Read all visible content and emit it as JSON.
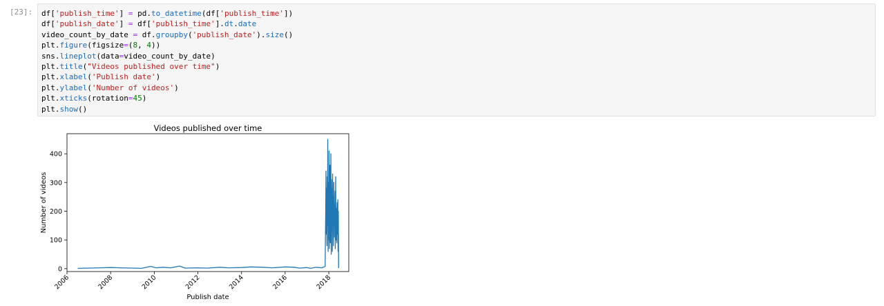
{
  "cell": {
    "prompt": "[23]:"
  },
  "code_lines": [
    [
      [
        "df[",
        ""
      ],
      [
        "'publish_time'",
        "str"
      ],
      [
        "] ",
        ""
      ],
      [
        "=",
        "op"
      ],
      [
        " pd.",
        ""
      ],
      [
        "to_datetime",
        "fn"
      ],
      [
        "(df[",
        ""
      ],
      [
        "'publish_time'",
        "str"
      ],
      [
        "])",
        ""
      ]
    ],
    [
      [
        "df[",
        ""
      ],
      [
        "'publish_date'",
        "str"
      ],
      [
        "] ",
        ""
      ],
      [
        "=",
        "op"
      ],
      [
        " df[",
        ""
      ],
      [
        "'publish_time'",
        "str"
      ],
      [
        "].",
        ""
      ],
      [
        "dt",
        "fn"
      ],
      [
        ".",
        ""
      ],
      [
        "date",
        "fn"
      ]
    ],
    [
      [
        "video_count_by_date ",
        ""
      ],
      [
        "=",
        "op"
      ],
      [
        " df.",
        ""
      ],
      [
        "groupby",
        "fn"
      ],
      [
        "(",
        ""
      ],
      [
        "'publish_date'",
        "str"
      ],
      [
        ").",
        ""
      ],
      [
        "size",
        "fn"
      ],
      [
        "()",
        ""
      ]
    ],
    [
      [
        "plt.",
        ""
      ],
      [
        "figure",
        "fn"
      ],
      [
        "(figsize",
        ""
      ],
      [
        "=",
        "op"
      ],
      [
        "(",
        ""
      ],
      [
        "8",
        "num"
      ],
      [
        ", ",
        ""
      ],
      [
        "4",
        "num"
      ],
      [
        "))",
        ""
      ]
    ],
    [
      [
        "sns.",
        ""
      ],
      [
        "lineplot",
        "fn"
      ],
      [
        "(data",
        ""
      ],
      [
        "=",
        "op"
      ],
      [
        "video_count_by_date)",
        ""
      ]
    ],
    [
      [
        "plt.",
        ""
      ],
      [
        "title",
        "fn"
      ],
      [
        "(",
        ""
      ],
      [
        "\"Videos published over time\"",
        "str"
      ],
      [
        ")",
        ""
      ]
    ],
    [
      [
        "plt.",
        ""
      ],
      [
        "xlabel",
        "fn"
      ],
      [
        "(",
        ""
      ],
      [
        "'Publish date'",
        "str"
      ],
      [
        ")",
        ""
      ]
    ],
    [
      [
        "plt.",
        ""
      ],
      [
        "ylabel",
        "fn"
      ],
      [
        "(",
        ""
      ],
      [
        "'Number of videos'",
        "str"
      ],
      [
        ")",
        ""
      ]
    ],
    [
      [
        "plt.",
        ""
      ],
      [
        "xticks",
        "fn"
      ],
      [
        "(rotation",
        ""
      ],
      [
        "=",
        "op"
      ],
      [
        "45",
        "num"
      ],
      [
        ")",
        ""
      ]
    ],
    [
      [
        "plt.",
        ""
      ],
      [
        "show",
        "fn"
      ],
      [
        "()",
        ""
      ]
    ]
  ],
  "colors": {
    "line": "#1f77b4"
  },
  "chart_data": {
    "type": "line",
    "title": "Videos published over time",
    "xlabel": "Publish date",
    "ylabel": "Number of videos",
    "x_ticks": [
      "2006",
      "2008",
      "2010",
      "2012",
      "2014",
      "2016",
      "2018"
    ],
    "y_ticks": [
      "0",
      "100",
      "200",
      "300",
      "400"
    ],
    "xlim": [
      "2006-01-01",
      "2018-12-01"
    ],
    "ylim": [
      -10,
      470
    ],
    "grid": false,
    "series": [
      {
        "points": [
          [
            "2006-07-01",
            1
          ],
          [
            "2007-01-01",
            2
          ],
          [
            "2007-07-01",
            3
          ],
          [
            "2008-01-01",
            4
          ],
          [
            "2008-06-01",
            3
          ],
          [
            "2009-01-01",
            2
          ],
          [
            "2009-06-01",
            1
          ],
          [
            "2009-11-01",
            8
          ],
          [
            "2010-02-01",
            3
          ],
          [
            "2010-06-01",
            5
          ],
          [
            "2010-10-01",
            3
          ],
          [
            "2011-03-01",
            9
          ],
          [
            "2011-06-01",
            2
          ],
          [
            "2012-01-01",
            3
          ],
          [
            "2012-06-01",
            2
          ],
          [
            "2013-01-01",
            5
          ],
          [
            "2013-06-01",
            3
          ],
          [
            "2014-01-01",
            4
          ],
          [
            "2014-06-01",
            6
          ],
          [
            "2015-01-01",
            5
          ],
          [
            "2015-06-01",
            3
          ],
          [
            "2016-01-01",
            6
          ],
          [
            "2016-06-01",
            5
          ],
          [
            "2016-09-01",
            2
          ],
          [
            "2017-01-01",
            4
          ],
          [
            "2017-03-01",
            1
          ],
          [
            "2017-06-01",
            5
          ],
          [
            "2017-09-01",
            3
          ],
          [
            "2017-11-01",
            8
          ],
          [
            "2017-11-10",
            200
          ],
          [
            "2017-11-15",
            340
          ],
          [
            "2017-11-20",
            120
          ],
          [
            "2017-11-25",
            280
          ],
          [
            "2017-12-01",
            80
          ],
          [
            "2017-12-05",
            320
          ],
          [
            "2017-12-10",
            150
          ],
          [
            "2017-12-15",
            450
          ],
          [
            "2017-12-20",
            60
          ],
          [
            "2017-12-25",
            300
          ],
          [
            "2018-01-01",
            100
          ],
          [
            "2018-01-05",
            410
          ],
          [
            "2018-01-10",
            70
          ],
          [
            "2018-01-15",
            250
          ],
          [
            "2018-01-20",
            360
          ],
          [
            "2018-01-25",
            90
          ],
          [
            "2018-02-01",
            200
          ],
          [
            "2018-02-05",
            400
          ],
          [
            "2018-02-10",
            50
          ],
          [
            "2018-02-15",
            310
          ],
          [
            "2018-02-20",
            130
          ],
          [
            "2018-02-25",
            280
          ],
          [
            "2018-03-01",
            60
          ],
          [
            "2018-03-05",
            330
          ],
          [
            "2018-03-10",
            170
          ],
          [
            "2018-03-15",
            250
          ],
          [
            "2018-03-20",
            80
          ],
          [
            "2018-03-25",
            300
          ],
          [
            "2018-04-01",
            110
          ],
          [
            "2018-04-05",
            220
          ],
          [
            "2018-04-10",
            150
          ],
          [
            "2018-04-15",
            270
          ],
          [
            "2018-04-20",
            70
          ],
          [
            "2018-04-25",
            320
          ],
          [
            "2018-05-01",
            100
          ],
          [
            "2018-05-05",
            180
          ],
          [
            "2018-05-10",
            210
          ],
          [
            "2018-05-15",
            90
          ],
          [
            "2018-05-20",
            230
          ],
          [
            "2018-05-25",
            120
          ],
          [
            "2018-06-01",
            240
          ],
          [
            "2018-06-05",
            60
          ],
          [
            "2018-06-10",
            200
          ],
          [
            "2018-06-14",
            2
          ]
        ]
      }
    ]
  }
}
